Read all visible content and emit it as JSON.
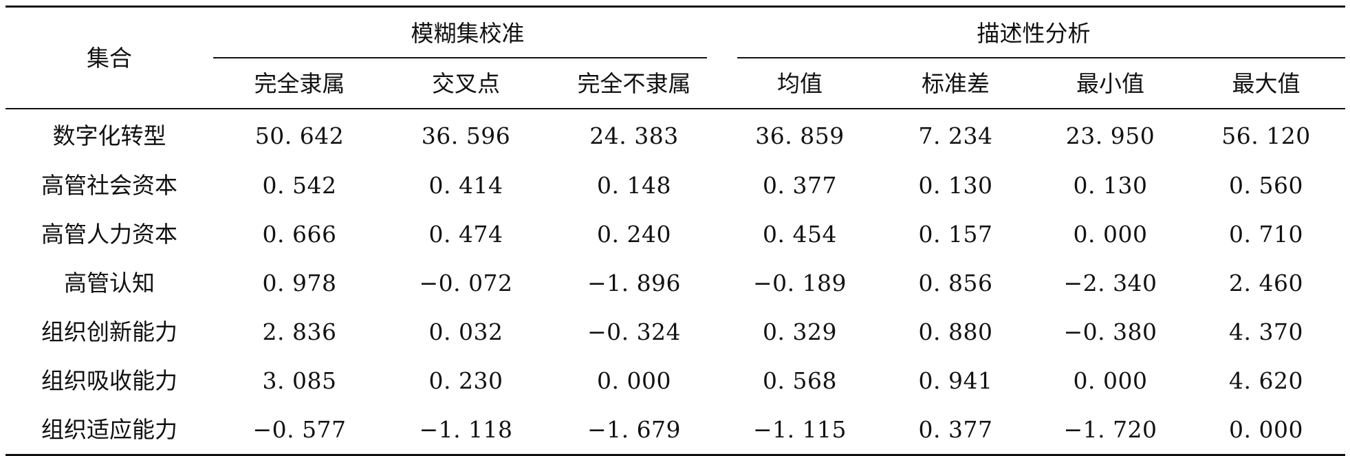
{
  "table": {
    "row_header_label": "集合",
    "groups": [
      {
        "label": "模糊集校准",
        "span": 3
      },
      {
        "label": "描述性分析",
        "span": 4
      }
    ],
    "columns": [
      "完全隶属",
      "交叉点",
      "完全不隶属",
      "均值",
      "标准差",
      "最小值",
      "最大值"
    ],
    "rows": [
      {
        "name": "数字化转型",
        "values": [
          "50. 642",
          "36. 596",
          "24. 383",
          "36. 859",
          "7. 234",
          "23. 950",
          "56. 120"
        ]
      },
      {
        "name": "高管社会资本",
        "values": [
          "0. 542",
          "0. 414",
          "0. 148",
          "0. 377",
          "0. 130",
          "0. 130",
          "0. 560"
        ]
      },
      {
        "name": "高管人力资本",
        "values": [
          "0. 666",
          "0. 474",
          "0. 240",
          "0. 454",
          "0. 157",
          "0. 000",
          "0. 710"
        ]
      },
      {
        "name": "高管认知",
        "values": [
          "0. 978",
          "−0. 072",
          "−1. 896",
          "−0. 189",
          "0. 856",
          "−2. 340",
          "2. 460"
        ]
      },
      {
        "name": "组织创新能力",
        "values": [
          "2. 836",
          "0. 032",
          "−0. 324",
          "0. 329",
          "0. 880",
          "−0. 380",
          "4. 370"
        ]
      },
      {
        "name": "组织吸收能力",
        "values": [
          "3. 085",
          "0. 230",
          "0. 000",
          "0. 568",
          "0. 941",
          "0. 000",
          "4. 620"
        ]
      },
      {
        "name": "组织适应能力",
        "values": [
          "−0. 577",
          "−1. 118",
          "−1. 679",
          "−1. 115",
          "0. 377",
          "−1. 720",
          "0. 000"
        ]
      }
    ]
  }
}
